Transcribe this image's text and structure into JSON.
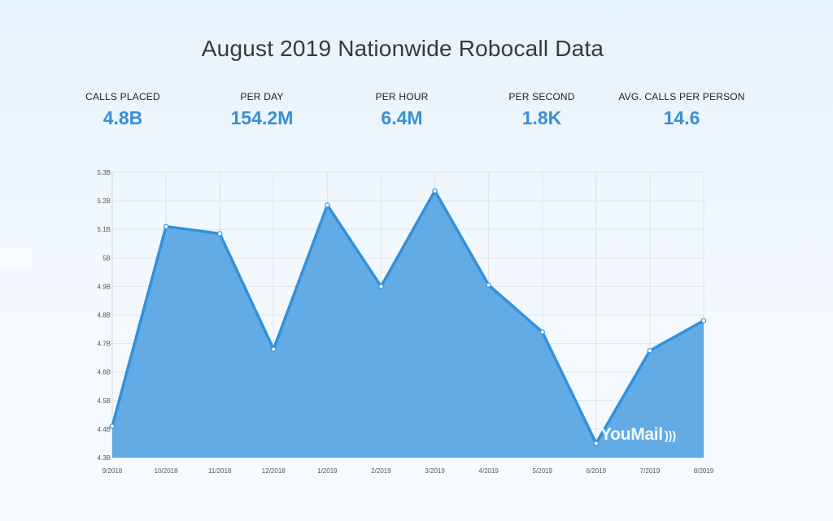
{
  "title": "August 2019 Nationwide Robocall Data",
  "stats": [
    {
      "label": "CALLS PLACED",
      "value": "4.8B"
    },
    {
      "label": "PER DAY",
      "value": "154.2M"
    },
    {
      "label": "PER HOUR",
      "value": "6.4M"
    },
    {
      "label": "PER SECOND",
      "value": "1.8K"
    },
    {
      "label": "AVG. CALLS PER PERSON",
      "value": "14.6"
    }
  ],
  "watermark": "YouMail",
  "colors": {
    "line": "#3291db",
    "area": "#5aa7e4",
    "value_text": "#3a8fd6",
    "grid": "#dde5ec"
  },
  "chart_data": {
    "type": "area",
    "title": "",
    "xlabel": "",
    "ylabel": "",
    "categories": [
      "9/2018",
      "10/2018",
      "11/2018",
      "12/2018",
      "1/2019",
      "2/2019",
      "3/2019",
      "4/2019",
      "5/2019",
      "6/2019",
      "7/2019",
      "8/2019"
    ],
    "values": [
      4.41,
      5.11,
      5.085,
      4.68,
      5.185,
      4.9,
      5.235,
      4.905,
      4.74,
      4.35,
      4.675,
      4.78
    ],
    "y_unit_suffix": "B",
    "yticks": [
      4.3,
      4.4,
      4.5,
      4.6,
      4.7,
      4.8,
      4.9,
      5.0,
      5.1,
      5.2,
      5.3
    ],
    "ytick_labels": [
      "4.3B",
      "4.4B",
      "4.5B",
      "4.6B",
      "4.7B",
      "4.8B",
      "4.9B",
      "5B",
      "5.1B",
      "5.2B",
      "5.3B"
    ],
    "ylim": [
      4.3,
      5.3
    ],
    "grid": true,
    "legend": "none"
  }
}
